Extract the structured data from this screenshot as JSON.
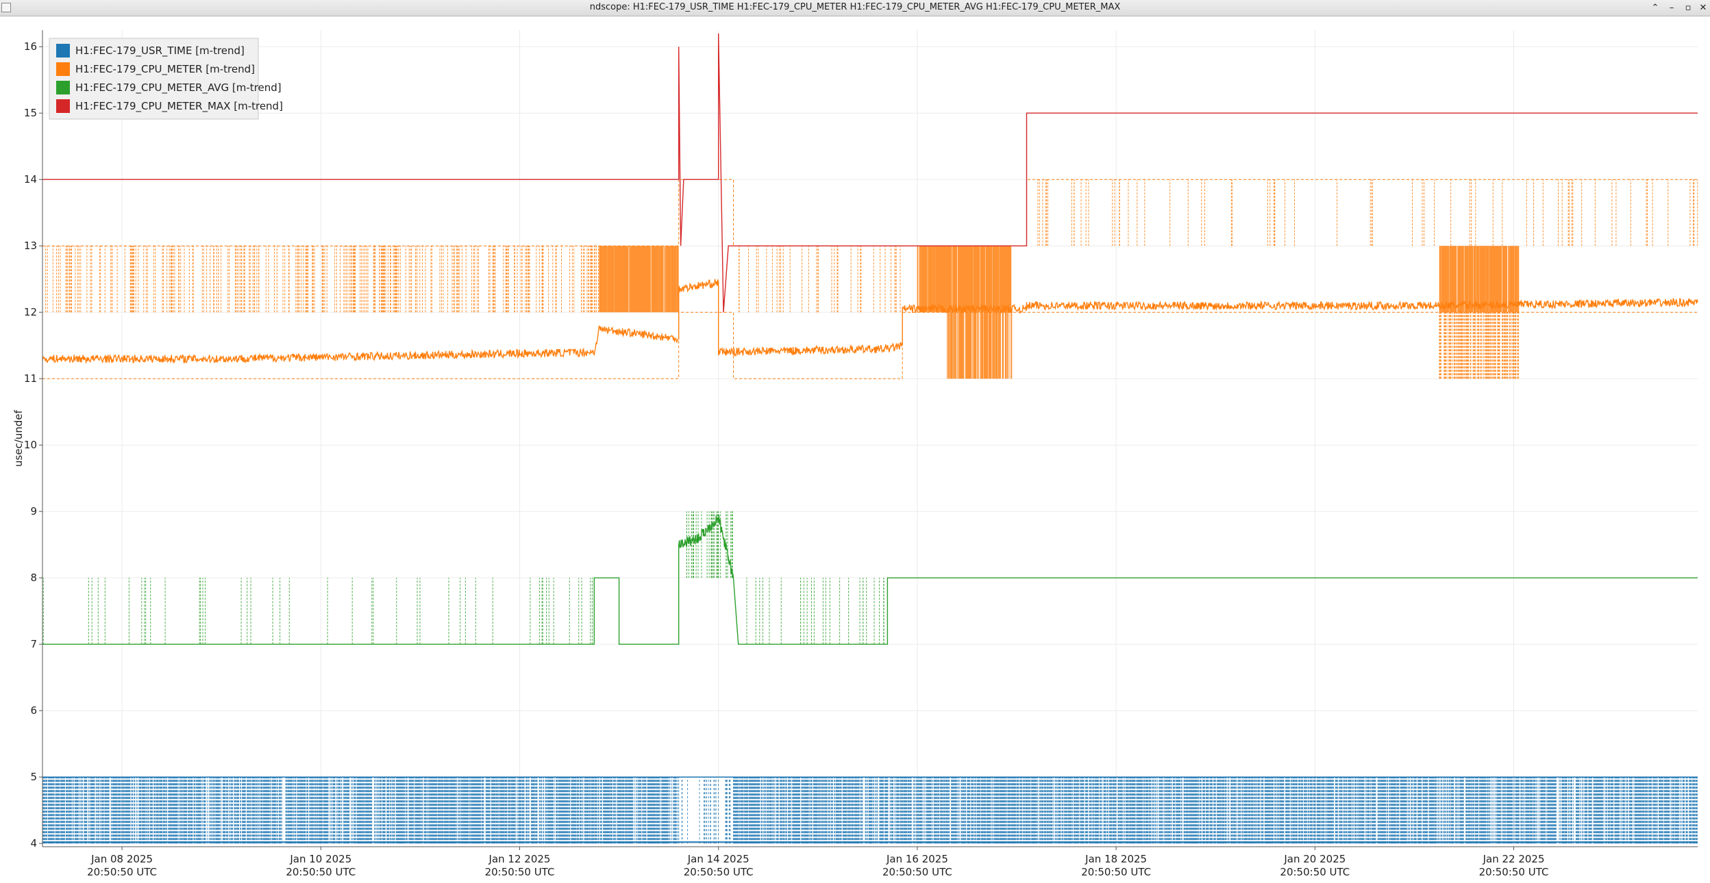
{
  "window": {
    "title": "ndscope: H1:FEC-179_USR_TIME H1:FEC-179_CPU_METER H1:FEC-179_CPU_METER_AVG H1:FEC-179_CPU_METER_MAX",
    "buttons": {
      "shade": "⌃",
      "minimize": "–",
      "maximize": "▫",
      "close": "✕"
    }
  },
  "chart_data": {
    "type": "line",
    "title": "",
    "xlabel": "",
    "ylabel": "usec/undef",
    "ylim": [
      3.95,
      16.25
    ],
    "xlim": [
      -0.8,
      15.85
    ],
    "grid": true,
    "legend_position": "top-left",
    "yticks": [
      4,
      5,
      6,
      7,
      8,
      9,
      10,
      11,
      12,
      13,
      14,
      15,
      16
    ],
    "xticks": [
      {
        "x": 0,
        "date": "Jan 08 2025",
        "time": "20:50:50 UTC"
      },
      {
        "x": 2,
        "date": "Jan 10 2025",
        "time": "20:50:50 UTC"
      },
      {
        "x": 4,
        "date": "Jan 12 2025",
        "time": "20:50:50 UTC"
      },
      {
        "x": 6,
        "date": "Jan 14 2025",
        "time": "20:50:50 UTC"
      },
      {
        "x": 8,
        "date": "Jan 16 2025",
        "time": "20:50:50 UTC"
      },
      {
        "x": 10,
        "date": "Jan 18 2025",
        "time": "20:50:50 UTC"
      },
      {
        "x": 12,
        "date": "Jan 20 2025",
        "time": "20:50:50 UTC"
      },
      {
        "x": 14,
        "date": "Jan 22 2025",
        "time": "20:50:50 UTC"
      }
    ],
    "series": [
      {
        "name": "H1:FEC-179_USR_TIME [m-trend]",
        "color": "#1f77b4",
        "band": {
          "min": 4,
          "max": 5
        },
        "mean_points": [
          [
            -0.8,
            4.02
          ],
          [
            15.85,
            4.02
          ]
        ],
        "gap": [
          5.6,
          6.15
        ]
      },
      {
        "name": "H1:FEC-179_CPU_METER [m-trend]",
        "color": "#ff7f0e",
        "mean_points": [
          [
            -0.8,
            11.3
          ],
          [
            1,
            11.3
          ],
          [
            3,
            11.35
          ],
          [
            4.75,
            11.4
          ],
          [
            4.8,
            11.75
          ],
          [
            5.6,
            11.6
          ],
          [
            5.6,
            12.35
          ],
          [
            6.0,
            12.45
          ],
          [
            6.0,
            11.4
          ],
          [
            7.7,
            11.45
          ],
          [
            7.85,
            11.5
          ],
          [
            7.85,
            12.05
          ],
          [
            9.1,
            12.05
          ],
          [
            9.1,
            12.1
          ],
          [
            13.3,
            12.1
          ],
          [
            15.85,
            12.15
          ]
        ],
        "min_points": [
          [
            -0.8,
            11
          ],
          [
            5.6,
            11
          ],
          [
            5.6,
            12
          ],
          [
            6.15,
            12
          ],
          [
            6.15,
            11
          ],
          [
            7.85,
            11
          ],
          [
            7.85,
            12
          ],
          [
            9.1,
            12
          ],
          [
            15.85,
            12
          ]
        ],
        "max_points": [
          [
            -0.8,
            13
          ],
          [
            5.6,
            13
          ],
          [
            5.6,
            14
          ],
          [
            6.15,
            14
          ],
          [
            6.15,
            13
          ],
          [
            9.1,
            13
          ],
          [
            9.1,
            14
          ],
          [
            15.85,
            14
          ]
        ],
        "busy_ranges": [
          [
            4.8,
            5.6
          ],
          [
            8.0,
            8.95
          ],
          [
            13.25,
            14.05
          ]
        ]
      },
      {
        "name": "H1:FEC-179_CPU_METER_AVG [m-trend]",
        "color": "#2ca02c",
        "points": [
          [
            -0.8,
            7
          ],
          [
            4.75,
            7
          ],
          [
            4.75,
            8
          ],
          [
            5.0,
            8
          ],
          [
            5.0,
            7
          ],
          [
            5.6,
            7
          ],
          [
            5.6,
            8.5
          ],
          [
            5.8,
            8.6
          ],
          [
            6.0,
            8.9
          ],
          [
            6.15,
            8
          ],
          [
            6.2,
            7
          ],
          [
            7.7,
            7
          ],
          [
            7.7,
            8
          ],
          [
            15.85,
            8
          ]
        ]
      },
      {
        "name": "H1:FEC-179_CPU_METER_MAX [m-trend]",
        "color": "#d62728",
        "points": [
          [
            -0.8,
            14
          ],
          [
            5.6,
            14
          ],
          [
            5.6,
            16
          ],
          [
            5.62,
            13
          ],
          [
            5.65,
            14
          ],
          [
            6.0,
            14
          ],
          [
            6.0,
            16.2
          ],
          [
            6.05,
            12
          ],
          [
            6.1,
            13
          ],
          [
            9.1,
            13
          ],
          [
            9.1,
            15
          ],
          [
            15.85,
            15
          ]
        ]
      }
    ]
  }
}
